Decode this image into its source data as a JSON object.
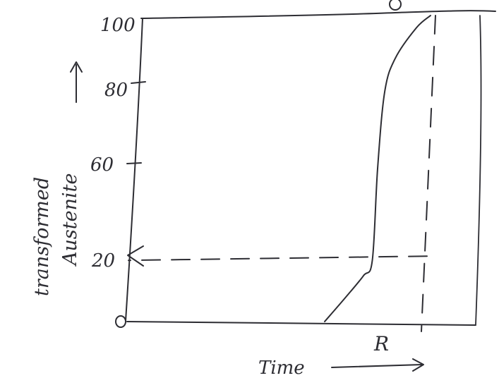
{
  "chart_data": {
    "type": "line",
    "xlabel": "Time",
    "ylabel": [
      "transformed",
      "Austenite"
    ],
    "origin_label": "0",
    "y_ticks": [
      20,
      60,
      80,
      100
    ],
    "y_tick_labels": [
      "20",
      "60",
      "80",
      "100"
    ],
    "x_marker_label": "R",
    "ylim": [
      0,
      100
    ],
    "xlim": [
      0,
      10
    ],
    "series": [
      {
        "x": [
          5.6,
          6.2,
          6.7,
          6.95,
          7.1,
          7.3,
          7.6,
          8.2,
          8.6
        ],
        "y": [
          0,
          8,
          15,
          20,
          50,
          75,
          86,
          96,
          100
        ]
      }
    ],
    "guide": {
      "x": 8.5,
      "y": 20
    },
    "grid": false
  }
}
